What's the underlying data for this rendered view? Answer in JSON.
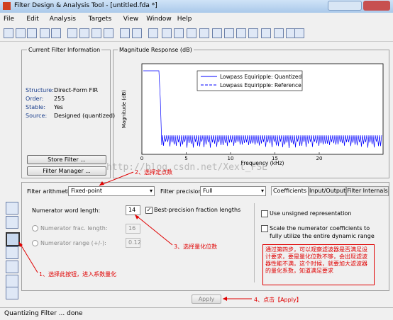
{
  "window": {
    "title": "Filter Design & Analysis Tool - [untitled.fda *]"
  },
  "menu": [
    "File",
    "Edit",
    "Analysis",
    "Targets",
    "View",
    "Window",
    "Help"
  ],
  "current_filter": {
    "title": "Current Filter Information",
    "fields": [
      {
        "label": "Structure:",
        "value": "Direct-Form FIR"
      },
      {
        "label": "Order:",
        "value": 255
      },
      {
        "label": "Stable:",
        "value": "Yes"
      },
      {
        "label": "Source:",
        "value": "Designed (quantized)"
      }
    ],
    "buttons": [
      "Store Filter ...",
      "Filter Manager ..."
    ]
  },
  "plot": {
    "title": "Magnitude Response (dB)",
    "xlabel": "Frequency (kHz)",
    "ylabel": "Magnitude (dB)",
    "xticks": [
      0,
      5,
      10,
      15,
      20
    ],
    "legend": [
      "Lowpass Equiripple: Quantized",
      "Lowpass Equiripple: Reference"
    ]
  },
  "watermark": "http://blog.csdn.net/Xext_FSE",
  "quantization": {
    "arithmetic_label": "Filter arithmetic:",
    "arithmetic": "Fixed-point",
    "precision_label": "Filter precision:",
    "precision": "Full",
    "tabs": [
      "Coefficients",
      "Input/Output",
      "Filter Internals"
    ],
    "word_length_label": "Numerator word length:",
    "word_length": 14,
    "best_precision": "Best-precision fraction lengths",
    "frac_length_label": "Numerator frac. length:",
    "frac_length": 16,
    "range_label": "Numerator range (+/-):",
    "range": 0.12,
    "unsigned": "Use unsigned representation",
    "scale": "Scale the numerator coefficients to fully utilize the entire dynamic range",
    "apply": "Apply"
  },
  "annotations": {
    "step1": "1、选择此按钮，进入系数量化",
    "step2": "2、选择定点数",
    "step3": "3、选择量化位数",
    "step4": "4、点击【Apply】",
    "note": "通过第四步，可以观察滤波器是否满足设计要求，要是量化位数不够，会出现滤波器性能不满，这个时候，就要加大滤波器的量化系数，知道满足要求"
  },
  "status": "Quantizing Filter ... done"
}
